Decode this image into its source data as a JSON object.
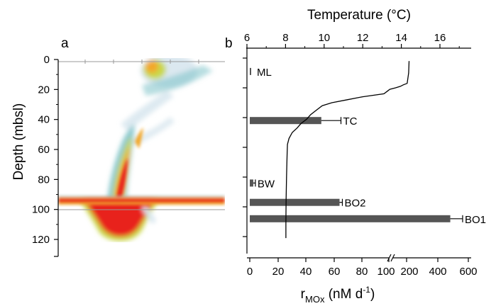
{
  "chart_data": [
    {
      "type": "heatmap",
      "panel_label": "a",
      "ylabel": "Depth (mbsl)",
      "ylim": [
        0,
        120
      ],
      "yticks": [
        0,
        20,
        40,
        60,
        80,
        100,
        120
      ],
      "colors": [
        "#d7e6ee",
        "#7ec3c9",
        "#c9d84a",
        "#f3a82a",
        "#e8231f"
      ]
    },
    {
      "type": "bar",
      "panel_label": "b",
      "xlabel_main": "r",
      "xlabel_sub": "MOx",
      "xlabel_unit": " (nM d",
      "xlabel_sup": "-1",
      "xlabel_close": ")",
      "x_ticks": [
        "0",
        "20",
        "40",
        "60",
        "80",
        "100",
        "200",
        "400",
        "600"
      ],
      "x_break": {
        "left_range": [
          0,
          100
        ],
        "right_range": [
          100,
          600
        ]
      },
      "bar_color": "#555555",
      "bars": [
        {
          "label": "ML",
          "depth": 9,
          "value": 1.0,
          "error": 0.5
        },
        {
          "label": "TC",
          "depth": 42,
          "value": 51,
          "error": 14
        },
        {
          "label": "BW",
          "depth": 84,
          "value": 2.5,
          "error": 1.5
        },
        {
          "label": "BO2",
          "depth": 97,
          "value": 64,
          "error": 2
        },
        {
          "label": "BO1",
          "depth": 108,
          "value": 490,
          "error": 80
        }
      ],
      "temperature": {
        "xlabel": "Temperature (°C)",
        "ticks": [
          "6",
          "8",
          "10",
          "12",
          "14",
          "16"
        ],
        "xlim": [
          6,
          17
        ],
        "profile": [
          {
            "depth": 2,
            "temp": 14.4
          },
          {
            "depth": 10,
            "temp": 14.38
          },
          {
            "depth": 17,
            "temp": 14.3
          },
          {
            "depth": 18,
            "temp": 14.1
          },
          {
            "depth": 19,
            "temp": 13.95
          },
          {
            "depth": 20,
            "temp": 13.7
          },
          {
            "depth": 21,
            "temp": 13.4
          },
          {
            "depth": 22,
            "temp": 13.3
          },
          {
            "depth": 24,
            "temp": 13.1
          },
          {
            "depth": 26,
            "temp": 12.0
          },
          {
            "depth": 28,
            "temp": 11.2
          },
          {
            "depth": 30,
            "temp": 10.4
          },
          {
            "depth": 32,
            "temp": 9.9
          },
          {
            "depth": 35,
            "temp": 9.6
          },
          {
            "depth": 38,
            "temp": 9.3
          },
          {
            "depth": 41,
            "temp": 9.1
          },
          {
            "depth": 44,
            "temp": 8.8
          },
          {
            "depth": 47,
            "temp": 8.6
          },
          {
            "depth": 50,
            "temp": 8.35
          },
          {
            "depth": 54,
            "temp": 8.18
          },
          {
            "depth": 58,
            "temp": 8.1
          },
          {
            "depth": 65,
            "temp": 8.08
          },
          {
            "depth": 80,
            "temp": 8.05
          },
          {
            "depth": 95,
            "temp": 8.03
          },
          {
            "depth": 110,
            "temp": 8.02
          },
          {
            "depth": 121,
            "temp": 8.02
          }
        ]
      }
    }
  ]
}
